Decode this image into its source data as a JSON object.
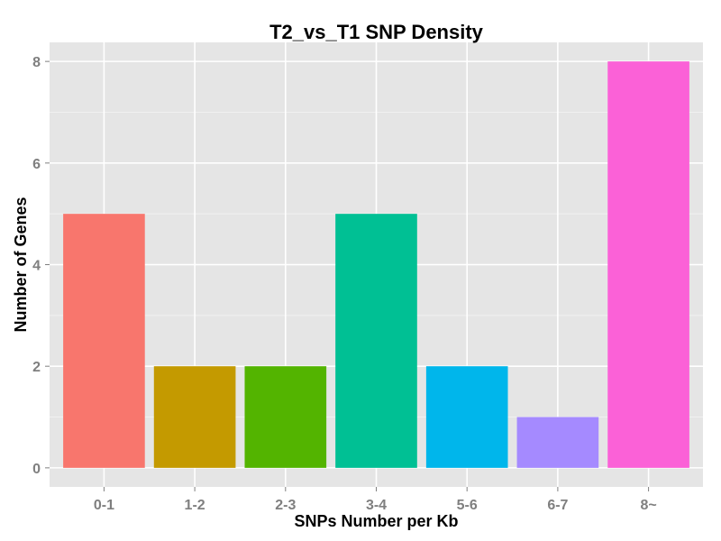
{
  "chart_data": {
    "type": "bar",
    "title": "T2_vs_T1 SNP Density",
    "xlabel": "SNPs Number per Kb",
    "ylabel": "Number of Genes",
    "categories": [
      "0-1",
      "1-2",
      "2-3",
      "3-4",
      "5-6",
      "6-7",
      "8~"
    ],
    "values": [
      5,
      2,
      2,
      5,
      2,
      1,
      8
    ],
    "colors": [
      "#F8766D",
      "#C49A00",
      "#53B400",
      "#00C094",
      "#00B6EB",
      "#A58AFF",
      "#FB61D7"
    ],
    "yticks": [
      0,
      2,
      4,
      6,
      8
    ],
    "ylim": [
      -0.375,
      8.375
    ],
    "grid": true,
    "legend": "none",
    "panel_background": "#E5E5E5",
    "grid_color": "#FFFFFF"
  }
}
